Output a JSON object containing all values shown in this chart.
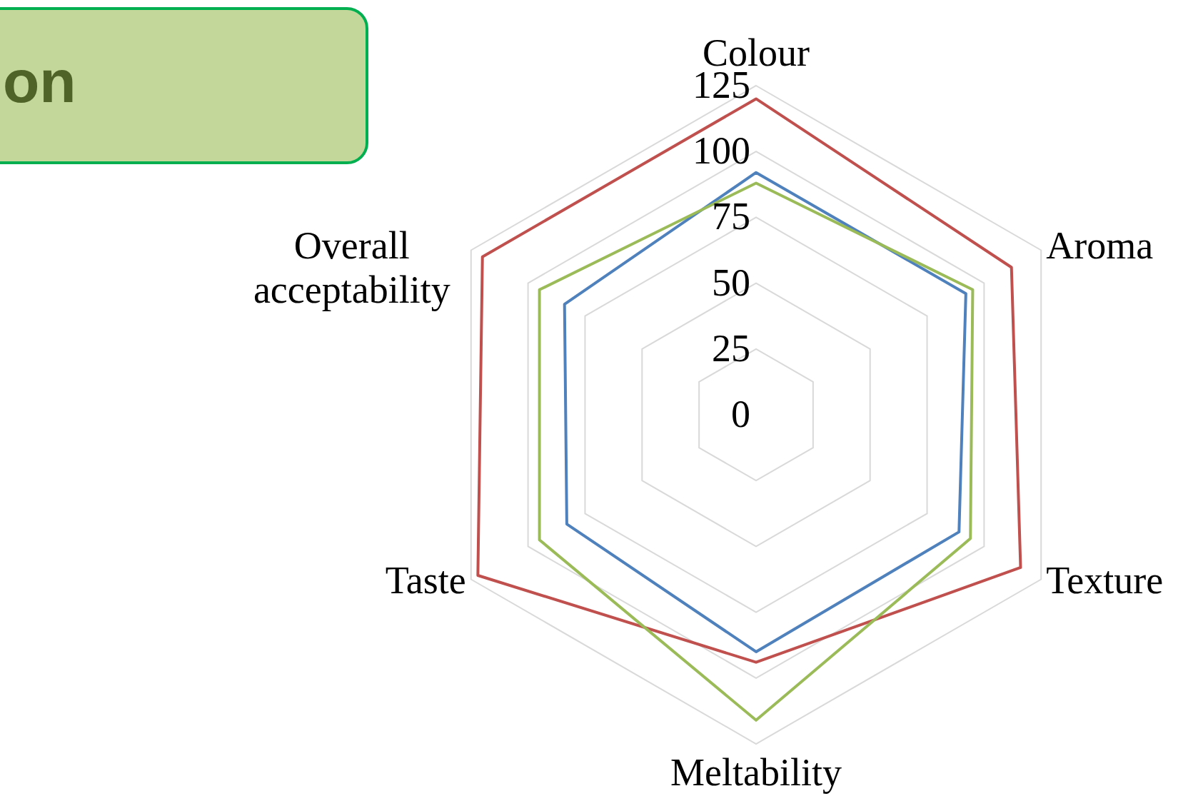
{
  "chart_data": {
    "type": "radar",
    "categories": [
      "Colour",
      "Aroma",
      "Texture",
      "Meltability",
      "Taste",
      "Overall acceptability"
    ],
    "series": [
      {
        "color": "#4f81bd",
        "values": [
          92,
          92,
          89,
          90,
          83,
          84
        ]
      },
      {
        "color": "#c0504d",
        "values": [
          120,
          112,
          116,
          94,
          122,
          120
        ]
      },
      {
        "color": "#9bbb59",
        "values": [
          88,
          95,
          94,
          116,
          95,
          95
        ]
      }
    ],
    "ylim": [
      0,
      125
    ],
    "yticks": [
      0,
      25,
      50,
      75,
      100,
      125
    ],
    "grid": true,
    "marker": "none",
    "line_style": "solid",
    "annotations": [
      "on"
    ]
  }
}
